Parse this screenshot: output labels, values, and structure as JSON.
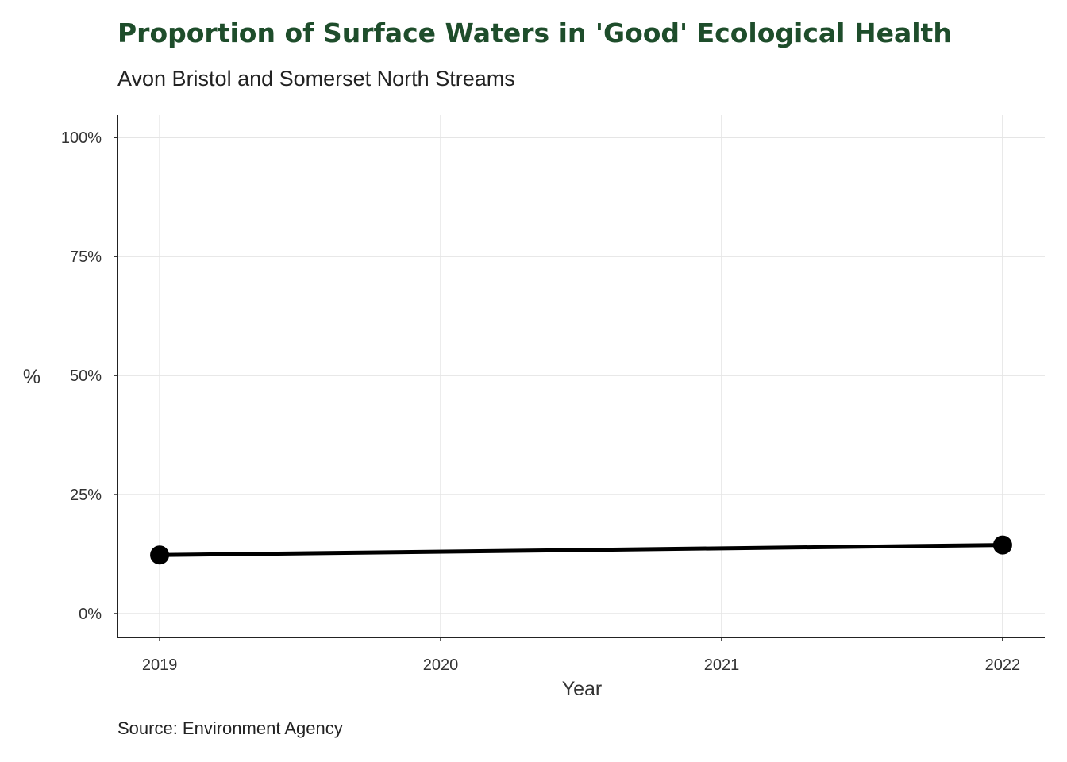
{
  "chart_data": {
    "type": "line",
    "title": "Proportion of Surface Waters in 'Good' Ecological Health",
    "subtitle": "Avon Bristol and Somerset North Streams",
    "caption": "Source: Environment Agency",
    "xlabel": "Year",
    "ylabel": "%",
    "x": [
      2019,
      2022
    ],
    "series": [
      {
        "values": [
          12.3,
          14.4
        ],
        "color": "#000000"
      }
    ],
    "xticks": [
      2019,
      2020,
      2021,
      2022
    ],
    "xtick_labels": [
      "2019",
      "2020",
      "2021",
      "2022"
    ],
    "yticks": [
      0,
      25,
      50,
      75,
      100
    ],
    "ytick_labels": [
      "0%",
      "25%",
      "50%",
      "75%",
      "100%"
    ],
    "xlim": [
      2018.85,
      2022.15
    ],
    "ylim": [
      -5,
      104.7
    ],
    "grid": true,
    "colors": {
      "title": "#1e4d2b",
      "grid": "#e5e5e5",
      "axis": "#222222"
    }
  }
}
